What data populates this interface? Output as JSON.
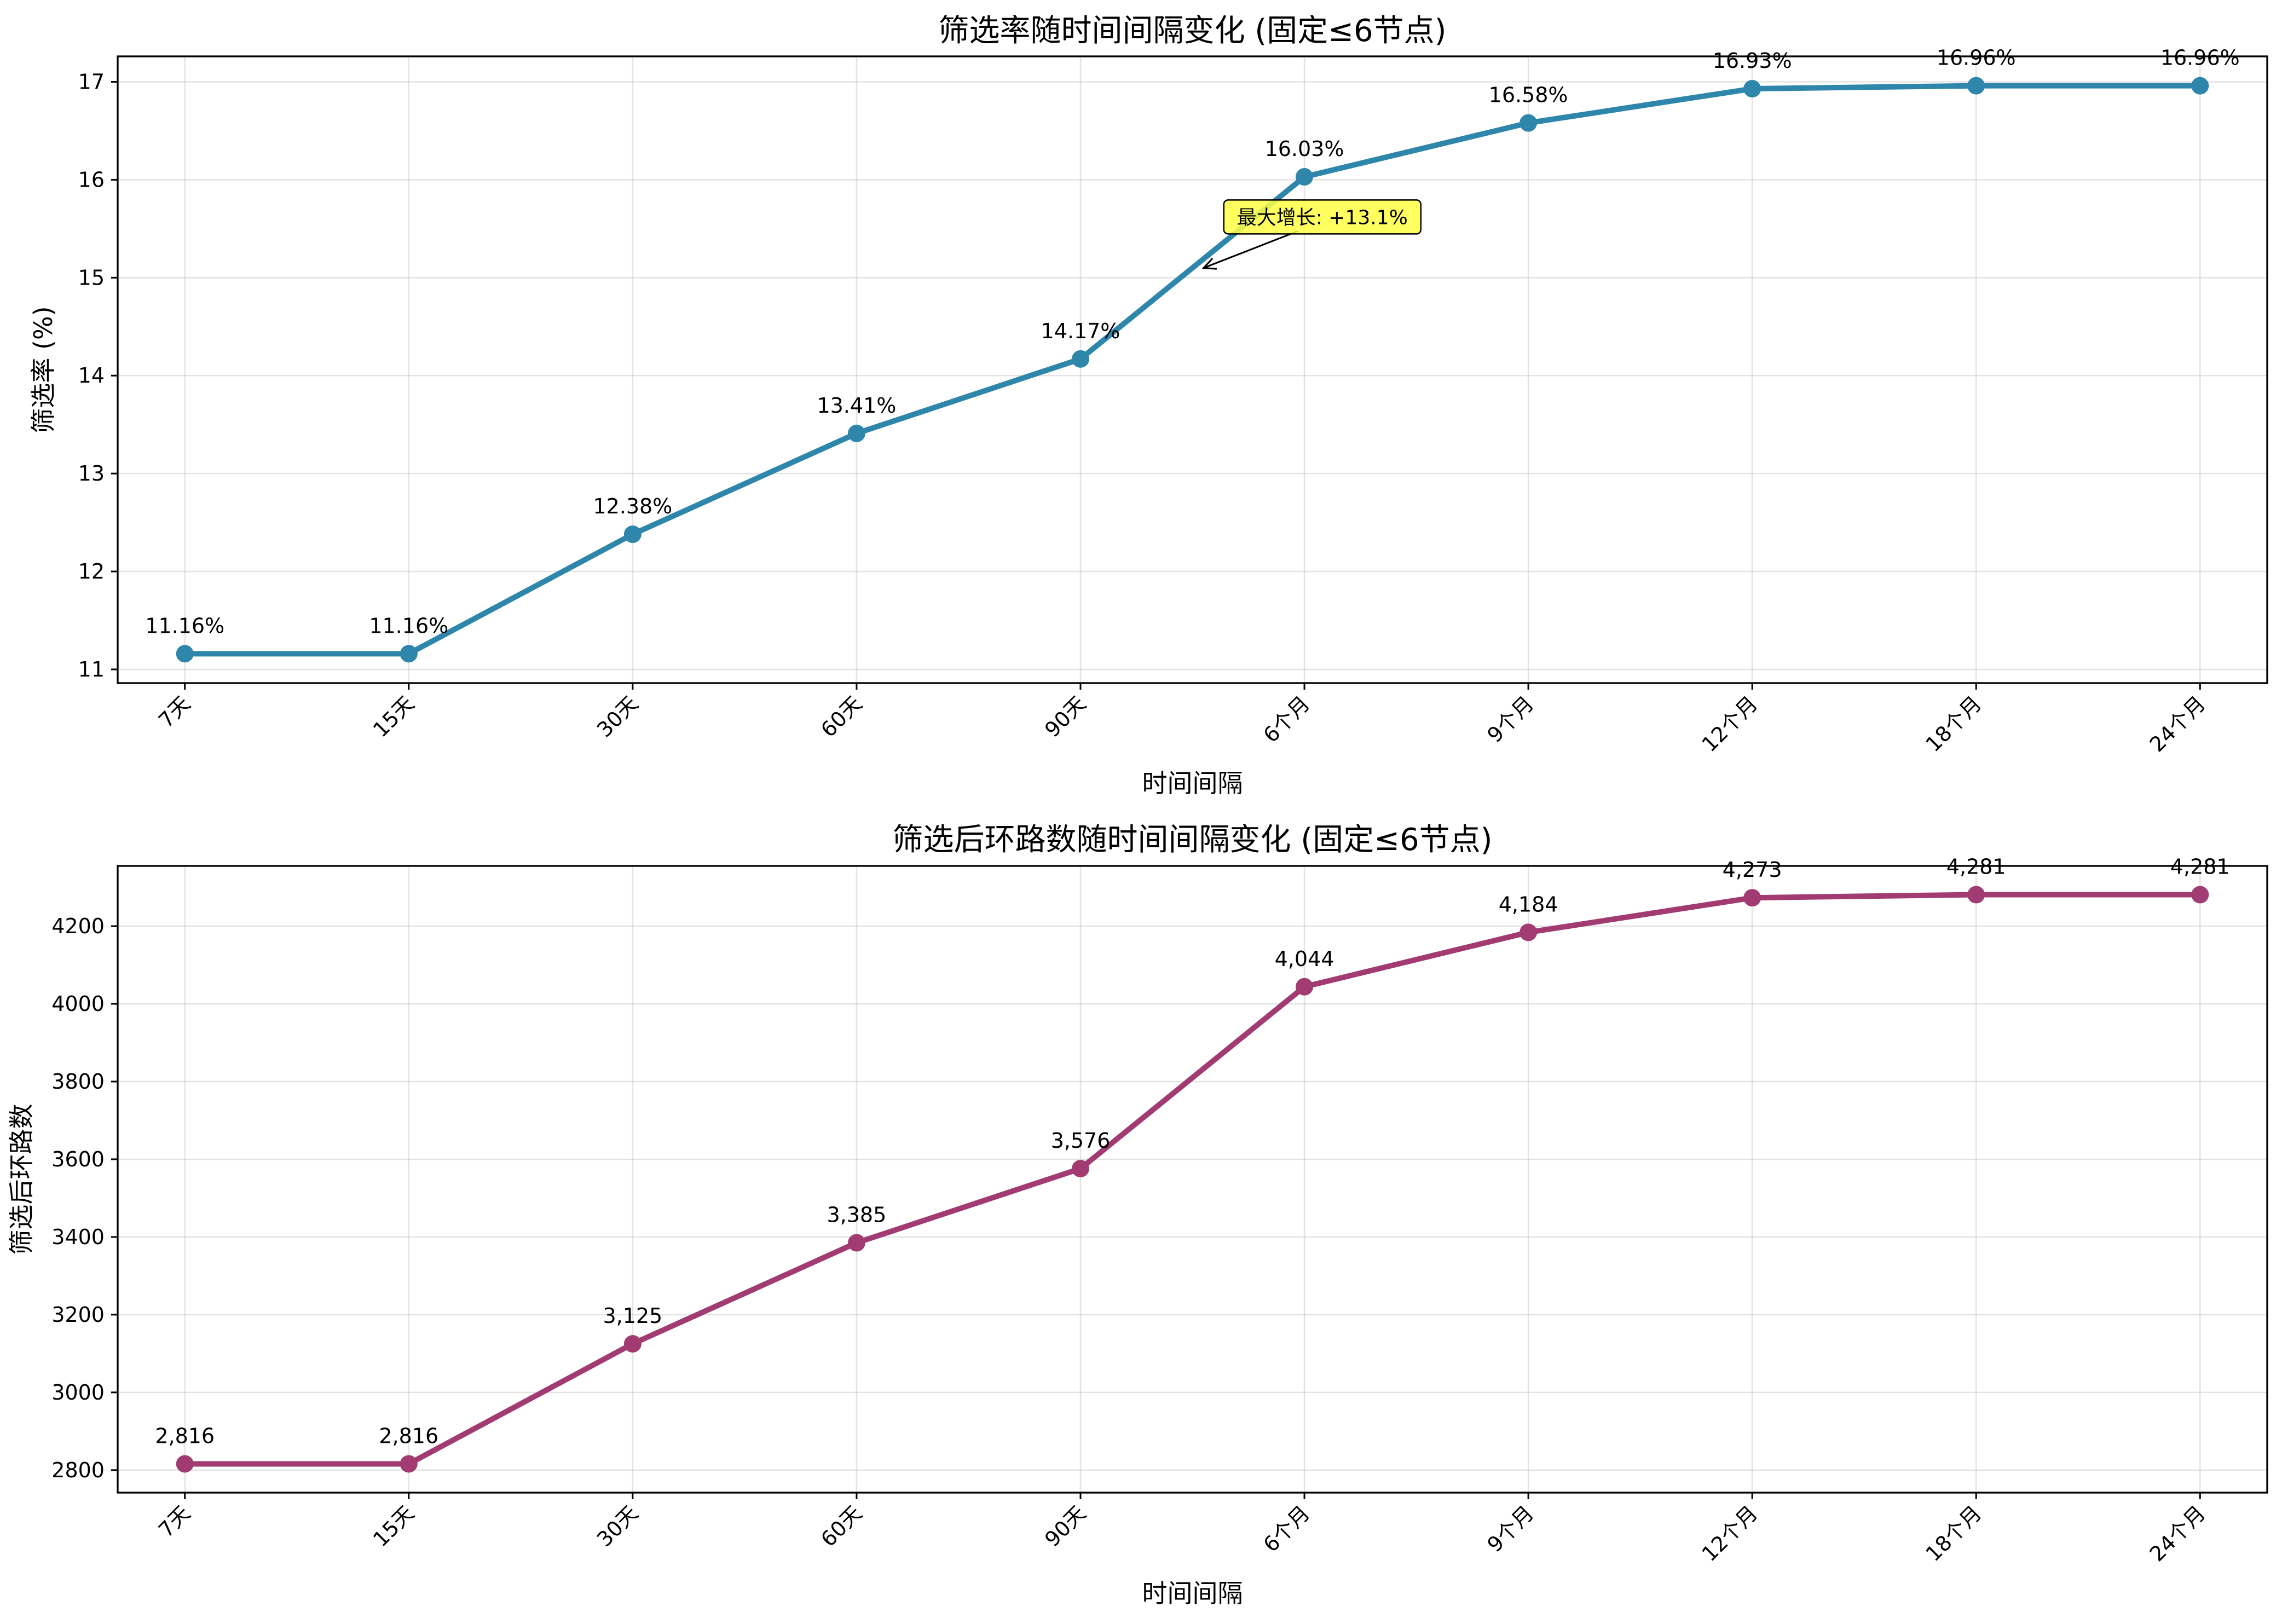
{
  "chart_data": [
    {
      "type": "line",
      "title": "筛选率随时间间隔变化 (固定≤6节点)",
      "xlabel": "时间间隔",
      "ylabel": "筛选率 (%)",
      "categories": [
        "7天",
        "15天",
        "30天",
        "60天",
        "90天",
        "6个月",
        "9个月",
        "12个月",
        "18个月",
        "24个月"
      ],
      "values": [
        11.16,
        11.16,
        12.38,
        13.41,
        14.17,
        16.03,
        16.58,
        16.93,
        16.96,
        16.96
      ],
      "value_labels": [
        "11.16%",
        "11.16%",
        "12.38%",
        "13.41%",
        "14.17%",
        "16.03%",
        "16.58%",
        "16.93%",
        "16.96%",
        "16.96%"
      ],
      "ylim": [
        10.86,
        17.26
      ],
      "yticks": [
        11,
        12,
        13,
        14,
        15,
        16,
        17
      ],
      "color": "#2e86ab",
      "grid": true,
      "annotation": {
        "text": "最大增长: +13.1%",
        "box_color": "#ffff44",
        "points_to": {
          "x": 4.55,
          "y": 15.1
        },
        "text_at": {
          "x": 5.08,
          "y": 15.62
        }
      }
    },
    {
      "type": "line",
      "title": "筛选后环路数随时间间隔变化 (固定≤6节点)",
      "xlabel": "时间间隔",
      "ylabel": "筛选后环路数",
      "categories": [
        "7天",
        "15天",
        "30天",
        "60天",
        "90天",
        "6个月",
        "9个月",
        "12个月",
        "18个月",
        "24个月"
      ],
      "values": [
        2816,
        2816,
        3125,
        3385,
        3576,
        4044,
        4184,
        4273,
        4281,
        4281
      ],
      "value_labels": [
        "2,816",
        "2,816",
        "3,125",
        "3,385",
        "3,576",
        "4,044",
        "4,184",
        "4,273",
        "4,281",
        "4,281"
      ],
      "ylim": [
        2742,
        4355
      ],
      "yticks": [
        2800,
        3000,
        3200,
        3400,
        3600,
        3800,
        4000,
        4200
      ],
      "color": "#a23b72",
      "grid": true
    }
  ]
}
